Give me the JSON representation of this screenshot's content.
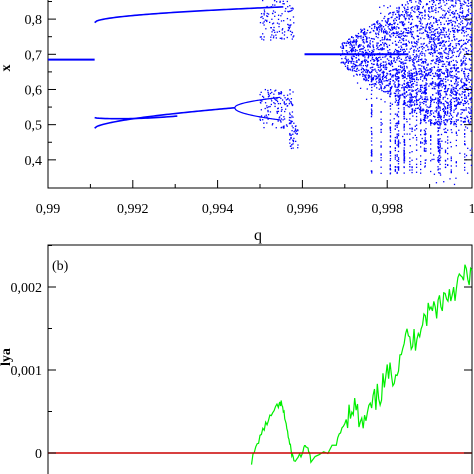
{
  "chart_data": [
    {
      "panel": "a",
      "type": "scatter",
      "xlabel": "q",
      "ylabel": "x",
      "xlim": [
        0.99,
        1.0
      ],
      "ylim": [
        0.32,
        0.86
      ],
      "x_ticks": [
        "0,99",
        "0,992",
        "0,994",
        "0,996",
        "0,998",
        "1"
      ],
      "y_ticks": [
        "0,4",
        "0,5",
        "0,6",
        "0,7",
        "0,8"
      ],
      "grid": false,
      "color": "#0000ff",
      "branches": [
        {
          "regime": "fixed point",
          "q_range": [
            0.99,
            0.9911
          ],
          "x": [
            0.685,
            0.685
          ]
        },
        {
          "regime": "period-2 upper",
          "q_range": [
            0.9911,
            0.9955
          ],
          "x": [
            0.79,
            0.835
          ]
        },
        {
          "regime": "period-2 lower",
          "q_range": [
            0.9911,
            0.9944
          ],
          "x": [
            0.49,
            0.548
          ]
        },
        {
          "regime": "period-4 split",
          "q_range": [
            0.9944,
            0.9955
          ],
          "x": [
            0.51,
            0.57
          ]
        },
        {
          "regime": "chaotic band",
          "q_range": [
            0.9949,
            0.9958
          ],
          "x": [
            0.44,
            0.86
          ]
        },
        {
          "regime": "fixed point (restored)",
          "q_range": [
            0.996,
            0.9985
          ],
          "x": [
            0.7,
            0.7
          ]
        },
        {
          "regime": "chaos",
          "q_range": [
            0.9969,
            1.0
          ],
          "x": [
            0.33,
            0.86
          ]
        }
      ]
    },
    {
      "panel": "b",
      "panel_label": "(b)",
      "type": "line",
      "xlabel": "",
      "ylabel": "lya",
      "xlim": [
        0.99,
        1.0
      ],
      "ylim": [
        -0.0002,
        0.0025
      ],
      "y_ticks": [
        "0",
        "0,001",
        "0,002"
      ],
      "grid": false,
      "series": [
        {
          "color": "#00ee00",
          "x": [
            0.9948,
            0.995,
            0.9952,
            0.9954,
            0.9955,
            0.9956,
            0.9957,
            0.9958,
            0.996,
            0.9961,
            0.9962,
            0.9968,
            0.997,
            0.9972,
            0.9974,
            0.9976,
            0.9978,
            0.998,
            0.9982,
            0.9984,
            0.9986,
            0.9988,
            0.999,
            0.9992,
            0.9994,
            0.9996,
            0.9998,
            1.0
          ],
          "y": [
            -0.0001,
            0.0002,
            0.0004,
            0.00055,
            0.0006,
            0.0004,
            0.0001,
            -0.0001,
            0.0,
            0.0001,
            -0.0001,
            0.0001,
            0.0004,
            0.0006,
            0.0003,
            0.0005,
            0.0007,
            0.0009,
            0.001,
            0.0014,
            0.0013,
            0.0016,
            0.0017,
            0.0018,
            0.0019,
            0.002,
            0.0021,
            0.0022
          ]
        },
        {
          "color": "#cc0000",
          "x": [
            0.99,
            1.0
          ],
          "y": [
            0.0,
            0.0
          ]
        }
      ]
    }
  ]
}
